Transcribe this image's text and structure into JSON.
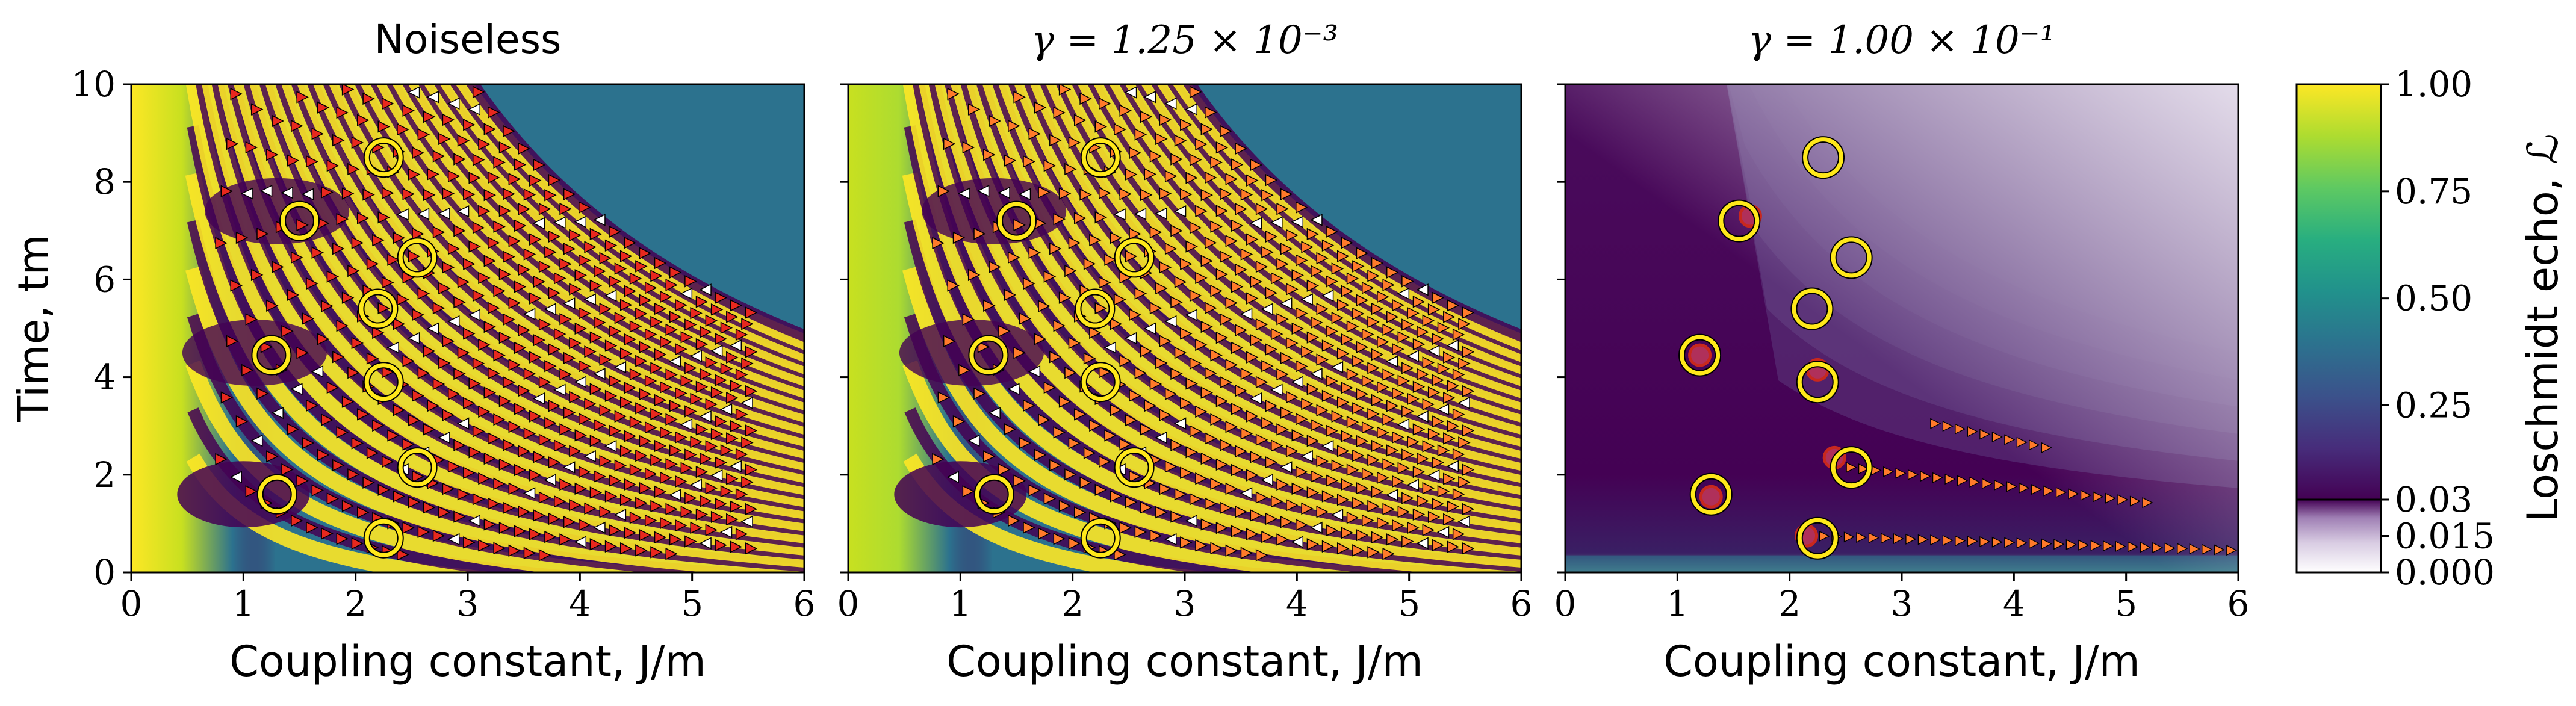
{
  "figure": {
    "titles": [
      "Noiseless",
      "γ = 1.25 × 10⁻³",
      "γ = 1.00 × 10⁻¹"
    ],
    "xlabel": "Coupling constant, J/m",
    "ylabel": "Time, tm",
    "colorbar_label": "Loschmidt echo, ℒ"
  },
  "chart_data": [
    {
      "type": "heatmap",
      "title": "Noiseless",
      "xlabel": "Coupling constant, J/m",
      "ylabel": "Time, tm",
      "xlim": [
        0,
        6
      ],
      "ylim": [
        0,
        10
      ],
      "xticks": [
        "0",
        "1",
        "2",
        "3",
        "4",
        "5",
        "6"
      ],
      "yticks": [
        "0",
        "2",
        "4",
        "6",
        "8",
        "10"
      ],
      "circles": [
        [
          1.25,
          4.45
        ],
        [
          1.3,
          1.6
        ],
        [
          1.5,
          7.2
        ],
        [
          2.25,
          8.5
        ],
        [
          2.2,
          5.4
        ],
        [
          2.25,
          3.9
        ],
        [
          2.25,
          0.7
        ],
        [
          2.55,
          6.45
        ],
        [
          2.55,
          2.15
        ]
      ],
      "markers": "red / white triangle markers along the Loschmidt-echo minima lines"
    },
    {
      "type": "heatmap",
      "title": "γ = 1.25 × 10⁻³",
      "xlabel": "Coupling constant, J/m",
      "xlim": [
        0,
        6
      ],
      "ylim": [
        0,
        10
      ],
      "xticks": [
        "0",
        "1",
        "2",
        "3",
        "4",
        "5",
        "6"
      ],
      "circles": [
        [
          1.25,
          4.45
        ],
        [
          1.3,
          1.6
        ],
        [
          1.5,
          7.2
        ],
        [
          2.25,
          8.5
        ],
        [
          2.2,
          5.4
        ],
        [
          2.25,
          3.9
        ],
        [
          2.25,
          0.7
        ],
        [
          2.55,
          6.45
        ],
        [
          2.55,
          2.15
        ]
      ],
      "markers": "orange / white triangle markers along the Loschmidt-echo minima lines"
    },
    {
      "type": "heatmap",
      "title": "γ = 1.00 × 10⁻¹",
      "xlabel": "Coupling constant, J/m",
      "xlim": [
        0,
        6
      ],
      "ylim": [
        0,
        10
      ],
      "xticks": [
        "0",
        "1",
        "2",
        "3",
        "4",
        "5",
        "6"
      ],
      "circles": [
        [
          1.2,
          4.45
        ],
        [
          1.3,
          1.6
        ],
        [
          1.55,
          7.2
        ],
        [
          2.3,
          8.5
        ],
        [
          2.2,
          5.4
        ],
        [
          2.25,
          3.9
        ],
        [
          2.25,
          0.7
        ],
        [
          2.55,
          6.45
        ],
        [
          2.55,
          2.15
        ]
      ],
      "red_circles": [
        [
          1.2,
          4.45
        ],
        [
          1.3,
          1.55
        ],
        [
          1.65,
          7.3
        ],
        [
          2.25,
          4.15
        ],
        [
          2.4,
          2.35
        ],
        [
          2.15,
          0.75
        ]
      ],
      "markers": "orange triangle markers along three low-echo branches"
    },
    {
      "type": "colorbar",
      "label": "Loschmidt echo, ℒ",
      "ticks": [
        "1.00",
        "0.75",
        "0.50",
        "0.25",
        "0.03",
        "0.015",
        "0.000"
      ],
      "tick_values": [
        1.0,
        0.75,
        0.5,
        0.25,
        0.03,
        0.015,
        0.0
      ],
      "colormap": "viridis above 0.03, white-to-purple below 0.03"
    }
  ],
  "colors": {
    "viridis": [
      "#440154",
      "#472d7b",
      "#3b528b",
      "#2c728e",
      "#21918c",
      "#28ae80",
      "#5ec962",
      "#addc30",
      "#fde725"
    ],
    "low_scale": [
      "#ffffff",
      "#d9cde3",
      "#9f7fb4",
      "#440154"
    ],
    "circle_yellow": "#ffe81a",
    "marker_red": "#e8281e",
    "marker_orange": "#ff7a2a"
  }
}
